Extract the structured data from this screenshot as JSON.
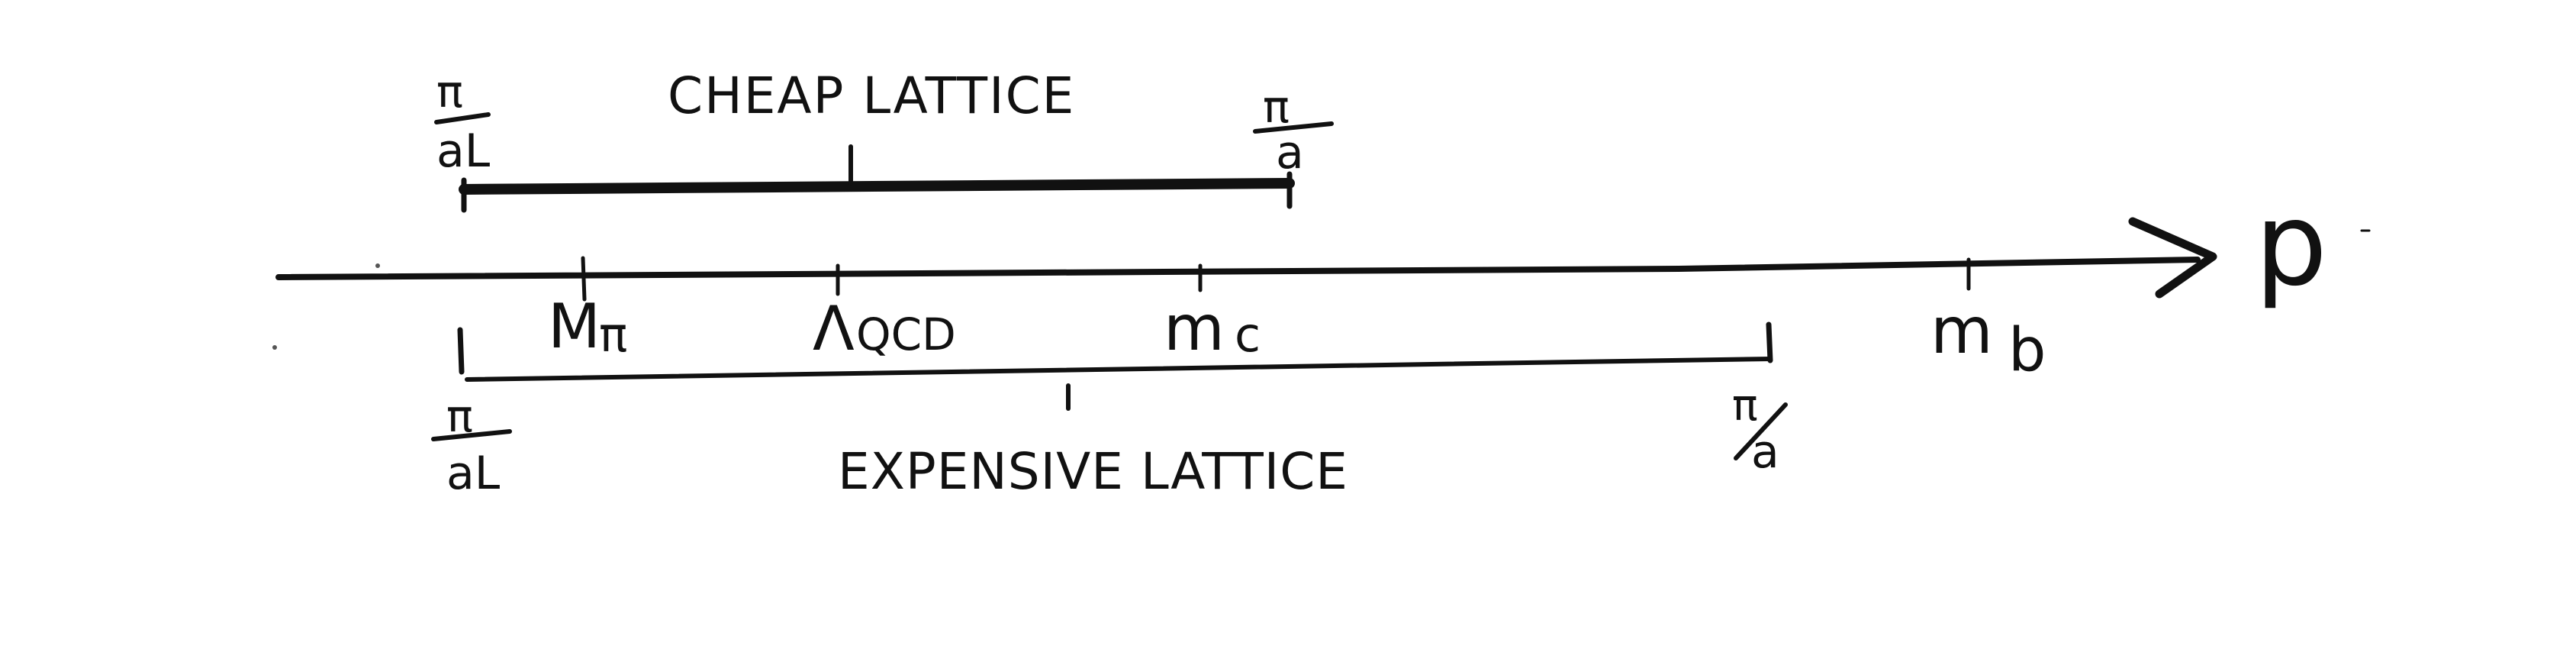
{
  "diagram": {
    "axis": {
      "label": "p"
    },
    "scale_labels": {
      "m_pi": {
        "base": "M",
        "sub": "π"
      },
      "lambda_qcd": {
        "base": "Λ",
        "sub": "QCD"
      },
      "m_c": {
        "base": "m",
        "sub": "c"
      },
      "m_b": {
        "base": "m",
        "sub": "b"
      }
    },
    "cheap_lattice": {
      "title": "CHEAP LATTICE",
      "left_bound": {
        "num": "π",
        "den": "aL"
      },
      "right_bound": {
        "num": "π",
        "den": "a"
      }
    },
    "expensive_lattice": {
      "title": "EXPENSIVE LATTICE",
      "left_bound": {
        "num": "π",
        "den": "aL"
      },
      "right_bound": {
        "num": "π",
        "den": "a"
      }
    }
  }
}
